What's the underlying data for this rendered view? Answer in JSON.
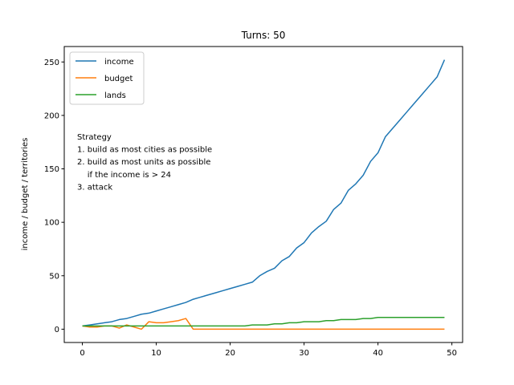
{
  "chart_data": {
    "type": "line",
    "title": "Turns: 50",
    "xlabel": "",
    "ylabel": "income / budget / territories",
    "xlim": [
      -2.45,
      51.45
    ],
    "ylim": [
      -12.45,
      264.45
    ],
    "xticks": [
      0,
      10,
      20,
      30,
      40,
      50
    ],
    "yticks": [
      0,
      50,
      100,
      150,
      200,
      250
    ],
    "grid": false,
    "legend_position": "upper-left",
    "x": [
      0,
      1,
      2,
      3,
      4,
      5,
      6,
      7,
      8,
      9,
      10,
      11,
      12,
      13,
      14,
      15,
      16,
      17,
      18,
      19,
      20,
      21,
      22,
      23,
      24,
      25,
      26,
      27,
      28,
      29,
      30,
      31,
      32,
      33,
      34,
      35,
      36,
      37,
      38,
      39,
      40,
      41,
      42,
      43,
      44,
      45,
      46,
      47,
      48,
      49
    ],
    "series": [
      {
        "name": "income",
        "color": "#1f77b4",
        "values": [
          3,
          4,
          5,
          6,
          7,
          9,
          10,
          12,
          14,
          15,
          17,
          19,
          21,
          23,
          25,
          28,
          30,
          32,
          34,
          36,
          38,
          40,
          42,
          44,
          50,
          54,
          57,
          64,
          68,
          76,
          81,
          90,
          96,
          101,
          112,
          118,
          130,
          136,
          144,
          157,
          165,
          180,
          188,
          196,
          204,
          212,
          220,
          228,
          236,
          252
        ]
      },
      {
        "name": "budget",
        "color": "#ff7f0e",
        "values": [
          3,
          2,
          2,
          3,
          3,
          1,
          4,
          2,
          0,
          7,
          6,
          6,
          7,
          8,
          10,
          0,
          0,
          0,
          0,
          0,
          0,
          0,
          0,
          0,
          0,
          0,
          0,
          0,
          0,
          0,
          0,
          0,
          0,
          0,
          0,
          0,
          0,
          0,
          0,
          0,
          0,
          0,
          0,
          0,
          0,
          0,
          0,
          0,
          0,
          0
        ]
      },
      {
        "name": "lands",
        "color": "#2ca02c",
        "values": [
          3,
          3,
          3,
          3,
          3,
          3,
          3,
          3,
          3,
          3,
          3,
          3,
          3,
          3,
          3,
          3,
          3,
          3,
          3,
          3,
          3,
          3,
          3,
          4,
          4,
          4,
          5,
          5,
          6,
          6,
          7,
          7,
          7,
          8,
          8,
          9,
          9,
          9,
          10,
          10,
          11,
          11,
          11,
          11,
          11,
          11,
          11,
          11,
          11,
          11
        ]
      }
    ],
    "annotation": [
      "Strategy",
      "1. build as most cities as possible",
      "2. build as most units as possible",
      "    if the income is > 24",
      "3. attack"
    ]
  }
}
